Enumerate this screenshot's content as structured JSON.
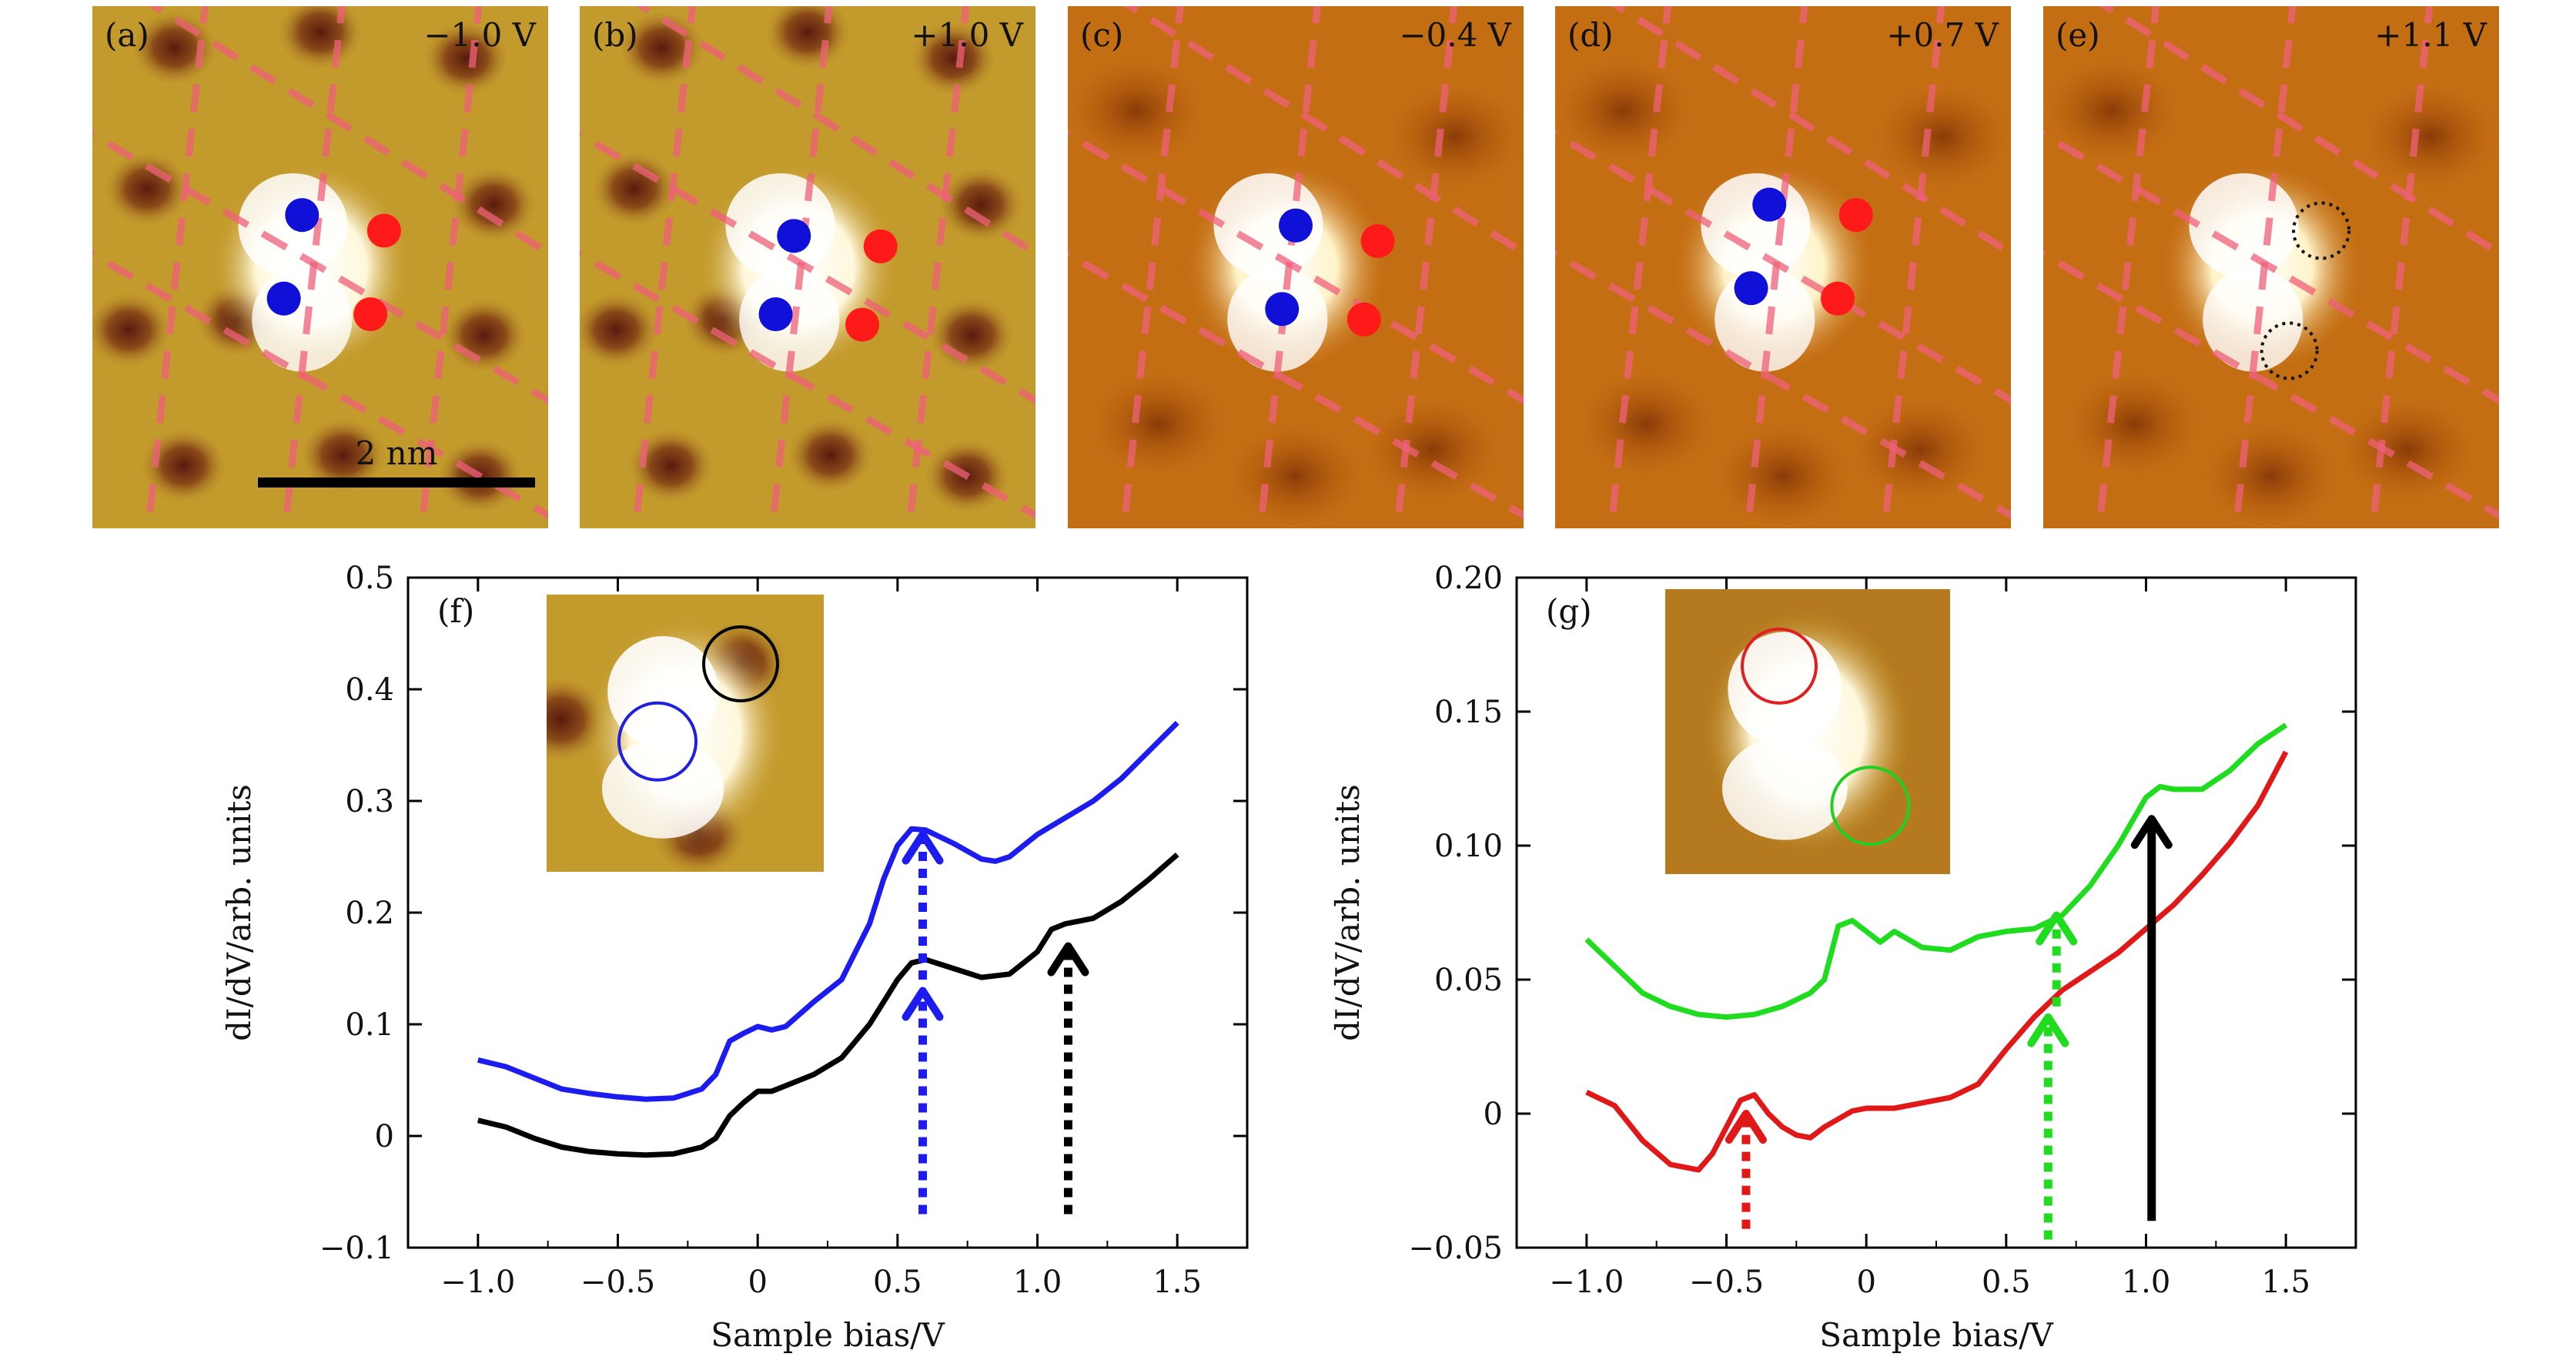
{
  "panels": [
    {
      "label": "(a)",
      "bias": "−1.0 V",
      "theme": "yellow",
      "scalebar": "2 nm",
      "blue_dots": [
        [
          0.46,
          0.4
        ],
        [
          0.42,
          0.56
        ]
      ],
      "red_dots": [
        [
          0.64,
          0.43
        ],
        [
          0.61,
          0.59
        ]
      ],
      "dotted_circles": []
    },
    {
      "label": "(b)",
      "bias": "+1.0 V",
      "theme": "yellow",
      "blue_dots": [
        [
          0.47,
          0.44
        ],
        [
          0.43,
          0.59
        ]
      ],
      "red_dots": [
        [
          0.66,
          0.46
        ],
        [
          0.62,
          0.61
        ]
      ],
      "dotted_circles": []
    },
    {
      "label": "(c)",
      "bias": "−0.4 V",
      "theme": "orange",
      "blue_dots": [
        [
          0.5,
          0.42
        ],
        [
          0.47,
          0.58
        ]
      ],
      "red_dots": [
        [
          0.68,
          0.45
        ],
        [
          0.65,
          0.6
        ]
      ],
      "dotted_circles": []
    },
    {
      "label": "(d)",
      "bias": "+0.7 V",
      "theme": "orange",
      "blue_dots": [
        [
          0.47,
          0.38
        ],
        [
          0.43,
          0.54
        ]
      ],
      "red_dots": [
        [
          0.66,
          0.4
        ],
        [
          0.62,
          0.56
        ]
      ],
      "dotted_circles": []
    },
    {
      "label": "(e)",
      "bias": "+1.1 V",
      "theme": "orange",
      "blue_dots": [],
      "red_dots": [],
      "dotted_circles": [
        [
          0.61,
          0.43
        ],
        [
          0.54,
          0.66
        ]
      ]
    }
  ],
  "chart_data": [
    {
      "type": "line",
      "panel_label": "(f)",
      "xlabel": "Sample bias/V",
      "ylabel": "dI/dV/arb. units",
      "xlim": [
        -1.25,
        1.75
      ],
      "ylim": [
        -0.1,
        0.5
      ],
      "xticks": [
        -1.0,
        -0.5,
        0,
        0.5,
        1.0,
        1.5
      ],
      "xtick_labels": [
        "−1.0",
        "−0.5",
        "0",
        "0.5",
        "1.0",
        "1.5"
      ],
      "yticks": [
        -0.1,
        0,
        0.1,
        0.2,
        0.3,
        0.4,
        0.5
      ],
      "ytick_labels": [
        "−0.1",
        "0",
        "0.1",
        "0.2",
        "0.3",
        "0.4",
        "0.5"
      ],
      "series": [
        {
          "color": "#1c1cf0",
          "x": [
            -1.0,
            -0.9,
            -0.8,
            -0.7,
            -0.6,
            -0.5,
            -0.4,
            -0.3,
            -0.2,
            -0.15,
            -0.1,
            -0.05,
            0.0,
            0.05,
            0.1,
            0.2,
            0.3,
            0.4,
            0.45,
            0.5,
            0.55,
            0.6,
            0.7,
            0.8,
            0.85,
            0.9,
            1.0,
            1.1,
            1.2,
            1.3,
            1.4,
            1.5
          ],
          "y": [
            0.068,
            0.062,
            0.052,
            0.042,
            0.038,
            0.035,
            0.033,
            0.034,
            0.042,
            0.055,
            0.085,
            0.092,
            0.098,
            0.095,
            0.098,
            0.12,
            0.14,
            0.19,
            0.23,
            0.26,
            0.275,
            0.274,
            0.262,
            0.248,
            0.246,
            0.25,
            0.27,
            0.285,
            0.3,
            0.32,
            0.345,
            0.37
          ]
        },
        {
          "color": "#000000",
          "x": [
            -1.0,
            -0.9,
            -0.8,
            -0.7,
            -0.6,
            -0.5,
            -0.4,
            -0.3,
            -0.2,
            -0.15,
            -0.1,
            -0.05,
            0.0,
            0.05,
            0.1,
            0.2,
            0.3,
            0.4,
            0.45,
            0.5,
            0.55,
            0.6,
            0.7,
            0.8,
            0.9,
            1.0,
            1.05,
            1.1,
            1.2,
            1.3,
            1.4,
            1.5
          ],
          "y": [
            0.014,
            0.008,
            -0.002,
            -0.01,
            -0.014,
            -0.016,
            -0.017,
            -0.016,
            -0.01,
            -0.002,
            0.018,
            0.03,
            0.04,
            0.04,
            0.045,
            0.055,
            0.07,
            0.1,
            0.12,
            0.14,
            0.155,
            0.158,
            0.15,
            0.142,
            0.145,
            0.165,
            0.185,
            0.19,
            0.195,
            0.21,
            0.23,
            0.252
          ]
        }
      ],
      "arrows": [
        {
          "x": 0.59,
          "y_from": -0.07,
          "y_to": 0.13,
          "color": "#1c1cf0",
          "style": "dotted"
        },
        {
          "x": 0.59,
          "y_from": 0.14,
          "y_to": 0.27,
          "color": "#1c1cf0",
          "style": "dotted"
        },
        {
          "x": 1.11,
          "y_from": -0.07,
          "y_to": 0.17,
          "color": "#000000",
          "style": "dotted"
        }
      ]
    },
    {
      "type": "line",
      "panel_label": "(g)",
      "xlabel": "Sample bias/V",
      "ylabel": "dI/dV/arb. units",
      "xlim": [
        -1.25,
        1.75
      ],
      "ylim": [
        -0.05,
        0.2
      ],
      "xticks": [
        -1.0,
        -0.5,
        0,
        0.5,
        1.0,
        1.5
      ],
      "xtick_labels": [
        "−1.0",
        "−0.5",
        "0",
        "0.5",
        "1.0",
        "1.5"
      ],
      "yticks": [
        -0.05,
        0,
        0.05,
        0.1,
        0.15,
        0.2
      ],
      "ytick_labels": [
        "−0.05",
        "0",
        "0.05",
        "0.10",
        "0.15",
        "0.20"
      ],
      "series": [
        {
          "color": "#1fdc1f",
          "x": [
            -1.0,
            -0.9,
            -0.8,
            -0.7,
            -0.6,
            -0.5,
            -0.4,
            -0.3,
            -0.2,
            -0.15,
            -0.1,
            -0.05,
            0.0,
            0.05,
            0.1,
            0.2,
            0.3,
            0.4,
            0.5,
            0.6,
            0.7,
            0.8,
            0.9,
            1.0,
            1.05,
            1.1,
            1.2,
            1.3,
            1.4,
            1.5
          ],
          "y": [
            0.065,
            0.055,
            0.045,
            0.04,
            0.037,
            0.036,
            0.037,
            0.04,
            0.045,
            0.05,
            0.07,
            0.072,
            0.068,
            0.064,
            0.068,
            0.062,
            0.061,
            0.066,
            0.068,
            0.069,
            0.074,
            0.085,
            0.1,
            0.118,
            0.122,
            0.121,
            0.121,
            0.128,
            0.138,
            0.145
          ]
        },
        {
          "color": "#e01818",
          "x": [
            -1.0,
            -0.9,
            -0.8,
            -0.7,
            -0.6,
            -0.55,
            -0.5,
            -0.45,
            -0.4,
            -0.35,
            -0.3,
            -0.25,
            -0.2,
            -0.15,
            -0.1,
            -0.05,
            0.0,
            0.1,
            0.2,
            0.3,
            0.4,
            0.5,
            0.6,
            0.7,
            0.8,
            0.9,
            1.0,
            1.1,
            1.2,
            1.3,
            1.4,
            1.5
          ],
          "y": [
            0.008,
            0.003,
            -0.01,
            -0.019,
            -0.021,
            -0.015,
            -0.005,
            0.005,
            0.007,
            0.0,
            -0.005,
            -0.008,
            -0.009,
            -0.005,
            -0.002,
            0.001,
            0.002,
            0.002,
            0.004,
            0.006,
            0.011,
            0.024,
            0.036,
            0.046,
            0.053,
            0.06,
            0.069,
            0.078,
            0.089,
            0.101,
            0.115,
            0.135
          ]
        }
      ],
      "arrows": [
        {
          "x": -0.43,
          "y_from": -0.043,
          "y_to": 0.0,
          "color": "#e01818",
          "style": "dotted"
        },
        {
          "x": 0.65,
          "y_from": -0.047,
          "y_to": 0.036,
          "color": "#1fdc1f",
          "style": "dotted"
        },
        {
          "x": 0.68,
          "y_from": 0.04,
          "y_to": 0.074,
          "color": "#1fdc1f",
          "style": "dotted"
        },
        {
          "x": 1.02,
          "y_from": -0.04,
          "y_to": 0.11,
          "color": "#000000",
          "style": "solid"
        }
      ]
    }
  ]
}
